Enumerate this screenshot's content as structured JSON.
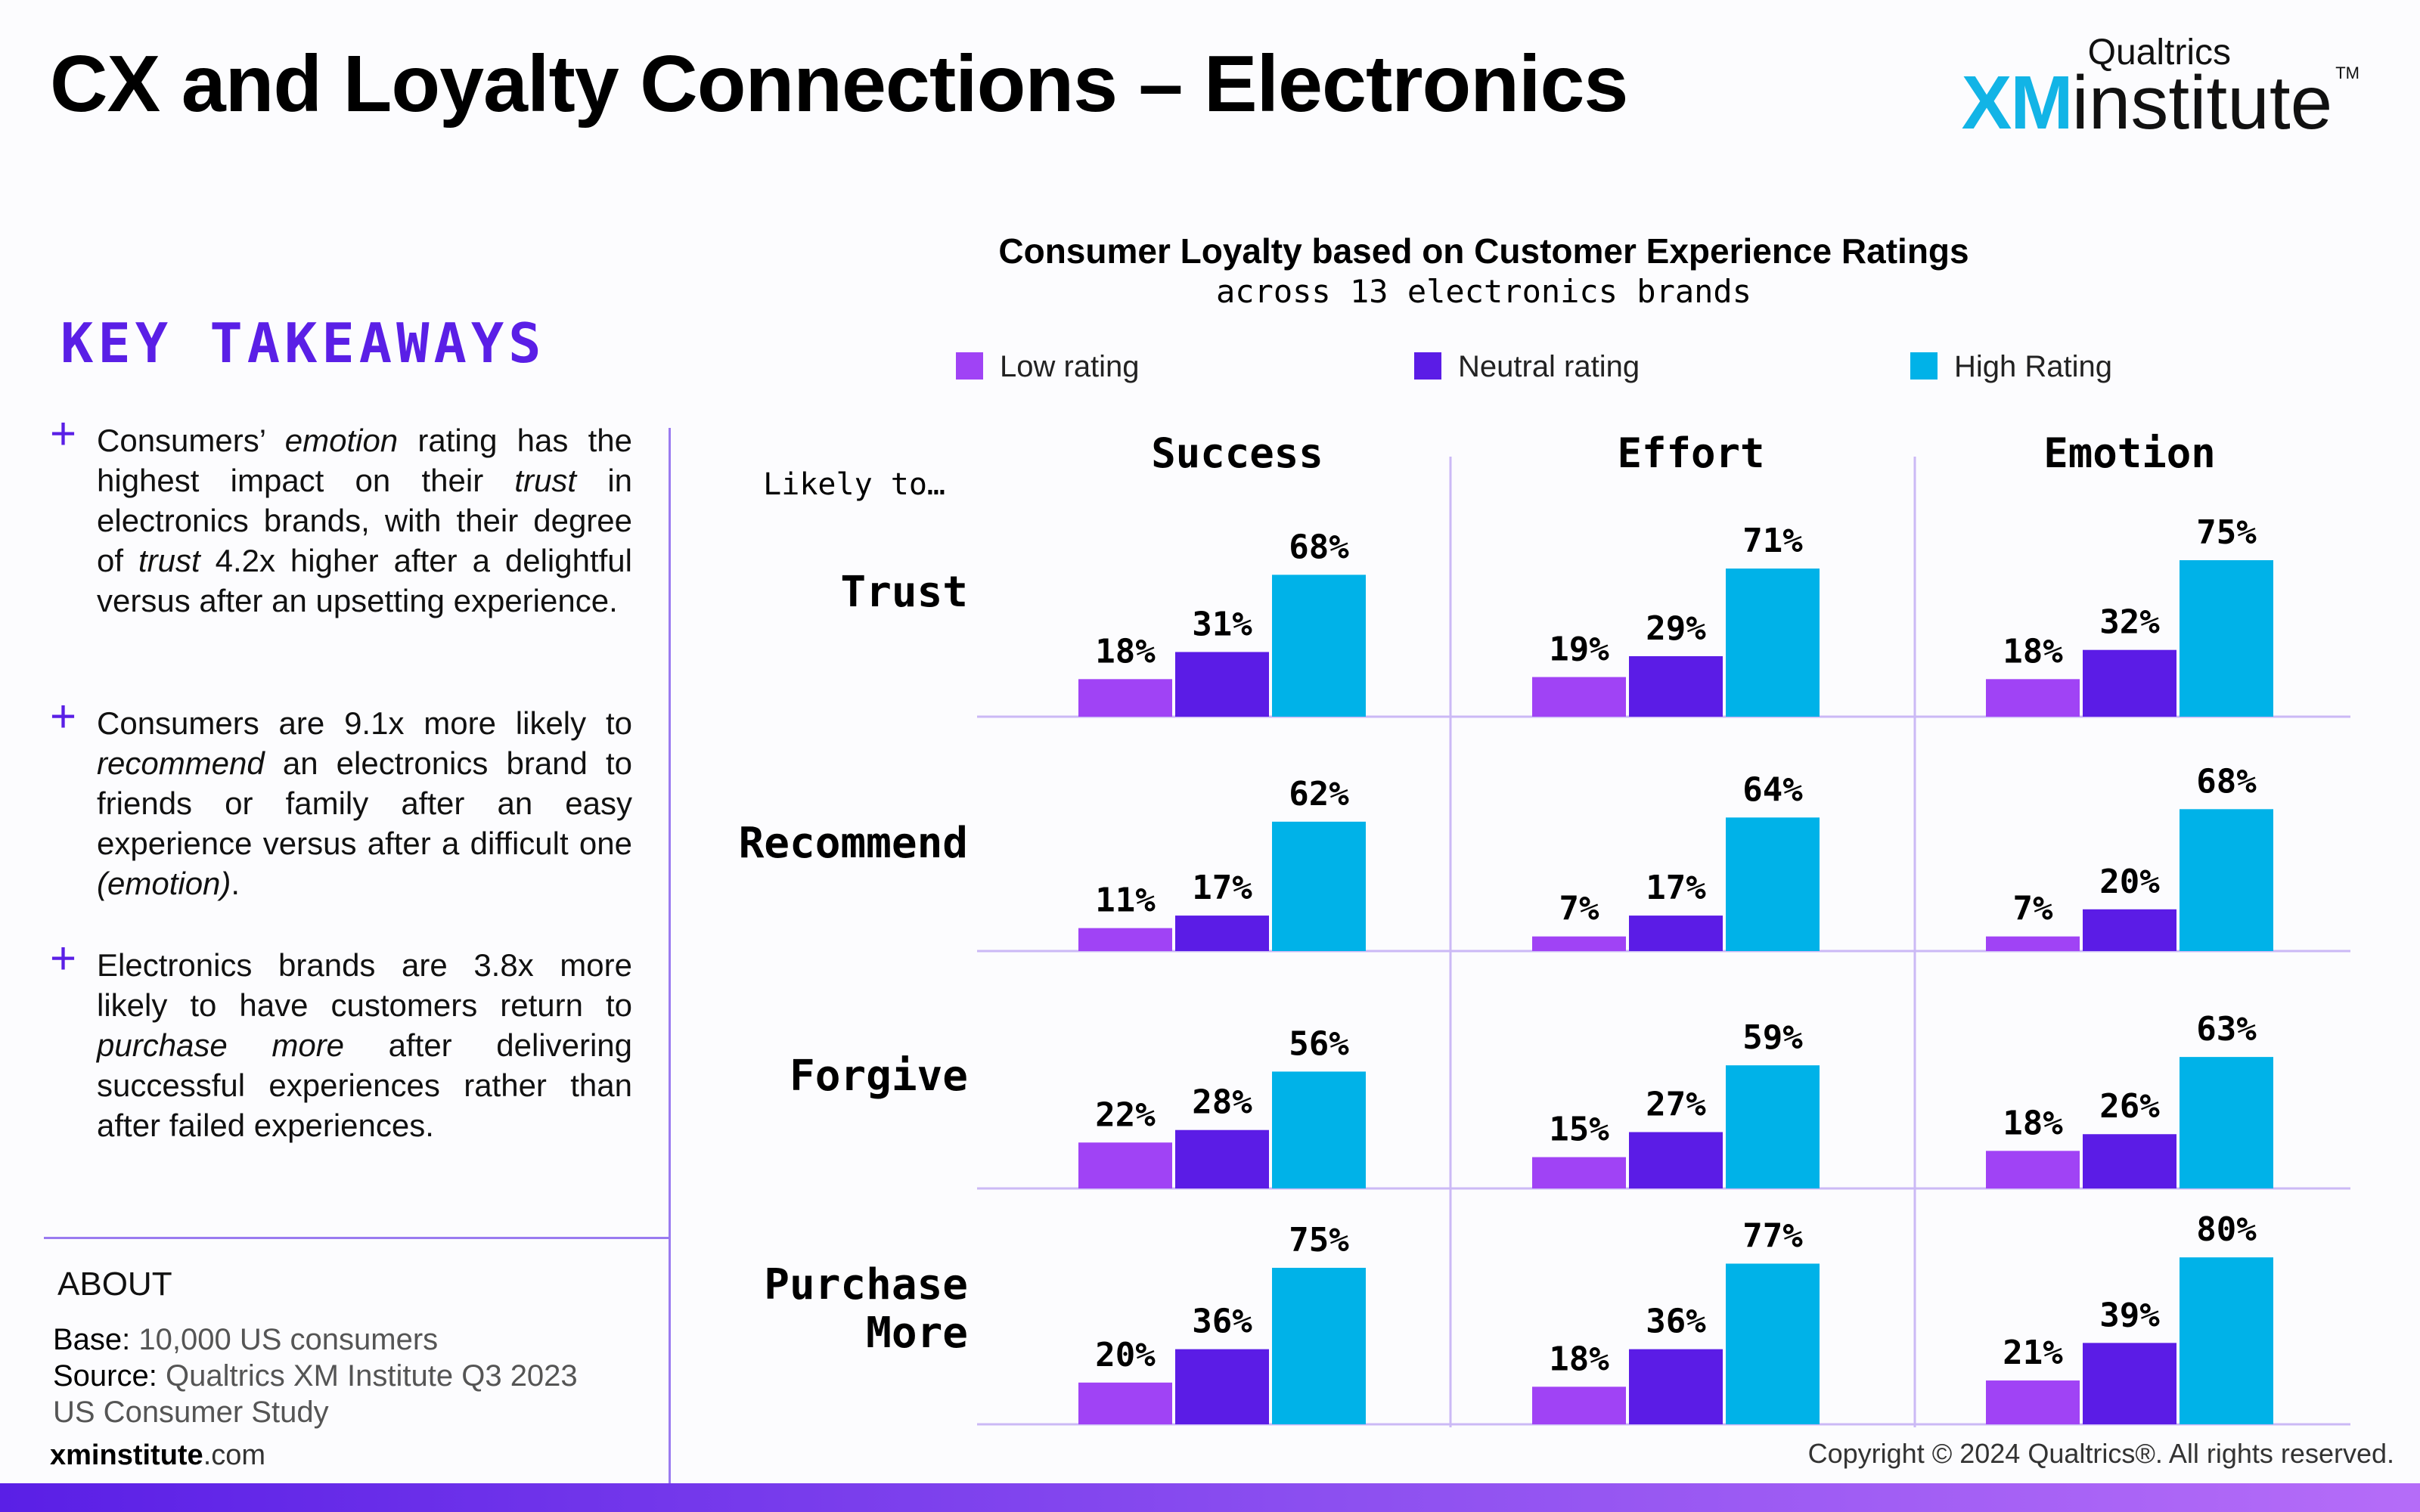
{
  "header": {
    "title": "CX and Loyalty Connections – Electronics",
    "logo_top": "Qualtrics",
    "logo_xm": "XM",
    "logo_word": "institute",
    "logo_tm": "TM"
  },
  "takeaways": {
    "title": "KEY TAKEAWAYS",
    "items": [
      {
        "parts": [
          {
            "t": "Consumers’ ",
            "i": false
          },
          {
            "t": "emotion",
            "i": true
          },
          {
            "t": " rating has the highest impact on their ",
            "i": false
          },
          {
            "t": "trust",
            "i": true
          },
          {
            "t": " in electronics brands, with their degree of ",
            "i": false
          },
          {
            "t": "trust",
            "i": true
          },
          {
            "t": " 4.2x higher after a delightful versus after an upsetting experience.",
            "i": false
          }
        ]
      },
      {
        "parts": [
          {
            "t": "Consumers are 9.1x more likely to ",
            "i": false
          },
          {
            "t": "recommend",
            "i": true
          },
          {
            "t": " an electronics brand to friends or family after an easy experience versus after a difficult one ",
            "i": false
          },
          {
            "t": "(emotion)",
            "i": true
          },
          {
            "t": ".",
            "i": false
          }
        ]
      },
      {
        "parts": [
          {
            "t": "Electronics brands are 3.8x more likely to have customers return to ",
            "i": false
          },
          {
            "t": "purchase more",
            "i": true
          },
          {
            "t": " after delivering successful experiences rather than after failed experiences.",
            "i": false
          }
        ]
      }
    ]
  },
  "about": {
    "title": "ABOUT",
    "base_label": "Base:",
    "base_value": "10,000 US consumers",
    "source_label": "Source:",
    "source_value": "Qualtrics XM Institute Q3 2023 US Consumer Study"
  },
  "footer": {
    "site_bold": "xminstitute",
    "site_rest": ".com",
    "copyright": "Copyright © 2024 Qualtrics®. All rights reserved."
  },
  "chart_data": {
    "type": "bar",
    "title": "Consumer Loyalty based on Customer Experience Ratings",
    "subtitle": "across 13 electronics brands",
    "row_header": "Likely to…",
    "legend": [
      "Low rating",
      "Neutral rating",
      "High Rating"
    ],
    "colors": [
      "#A043F5",
      "#5B1CE6",
      "#00B2E8"
    ],
    "columns": [
      "Success",
      "Effort",
      "Emotion"
    ],
    "rows": [
      "Trust",
      "Recommend",
      "Forgive",
      "Purchase More"
    ],
    "unit": "%",
    "ylim": [
      0,
      100
    ],
    "values": [
      [
        [
          18,
          31,
          68
        ],
        [
          19,
          29,
          71
        ],
        [
          18,
          32,
          75
        ]
      ],
      [
        [
          11,
          17,
          62
        ],
        [
          7,
          17,
          64
        ],
        [
          7,
          20,
          68
        ]
      ],
      [
        [
          22,
          28,
          56
        ],
        [
          15,
          27,
          59
        ],
        [
          18,
          26,
          63
        ]
      ],
      [
        [
          20,
          36,
          75
        ],
        [
          18,
          36,
          77
        ],
        [
          21,
          39,
          80
        ]
      ]
    ]
  }
}
